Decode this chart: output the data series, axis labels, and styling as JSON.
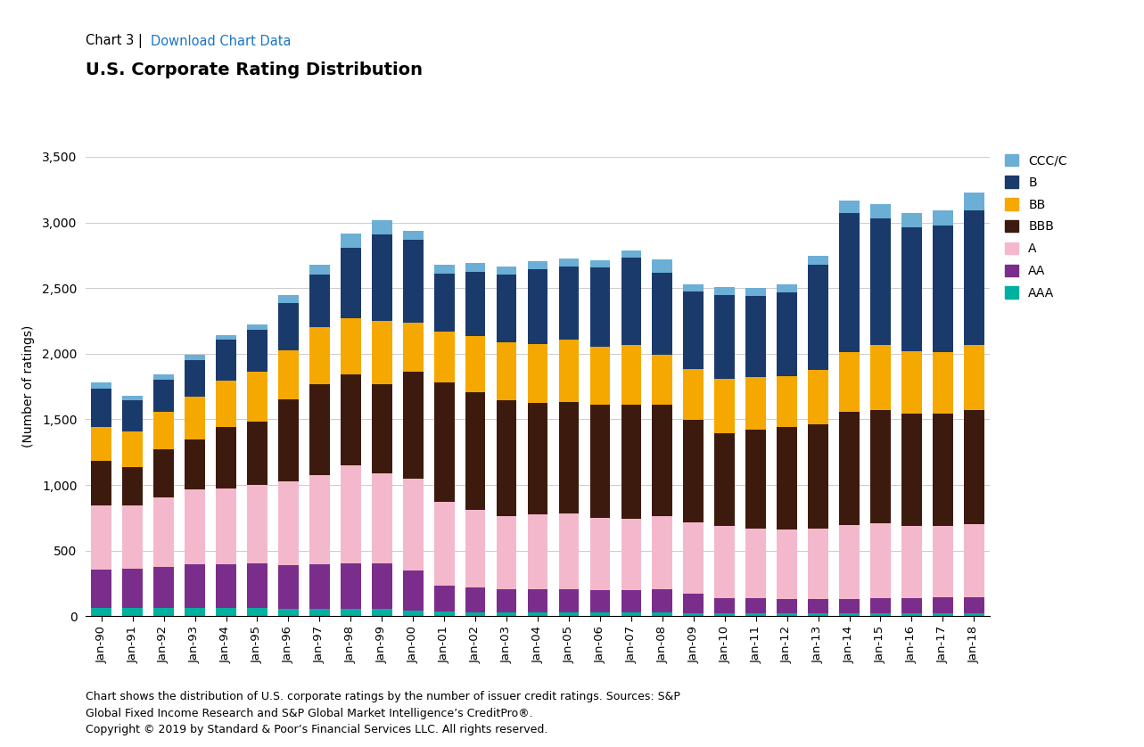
{
  "title_main": "U.S. Corporate Rating Distribution",
  "ylabel": "(Number of ratings)",
  "categories": [
    "Jan-90",
    "Jan-91",
    "Jan-92",
    "Jan-93",
    "Jan-94",
    "Jan-95",
    "Jan-96",
    "Jan-97",
    "Jan-98",
    "Jan-99",
    "Jan-00",
    "Jan-01",
    "Jan-02",
    "Jan-03",
    "Jan-04",
    "Jan-05",
    "Jan-06",
    "Jan-07",
    "Jan-08",
    "Jan-09",
    "Jan-10",
    "Jan-11",
    "Jan-12",
    "Jan-13",
    "Jan-14",
    "Jan-15",
    "Jan-16",
    "Jan-17",
    "Jan-18"
  ],
  "series": {
    "AAA": [
      65,
      65,
      65,
      65,
      65,
      65,
      60,
      60,
      60,
      60,
      40,
      35,
      30,
      30,
      30,
      30,
      30,
      30,
      30,
      25,
      20,
      20,
      20,
      20,
      20,
      20,
      20,
      20,
      20
    ],
    "AA": [
      290,
      300,
      310,
      330,
      330,
      335,
      330,
      335,
      340,
      340,
      310,
      200,
      190,
      175,
      175,
      175,
      170,
      170,
      175,
      150,
      120,
      115,
      110,
      110,
      110,
      120,
      120,
      125,
      125
    ],
    "A": [
      490,
      480,
      530,
      570,
      580,
      600,
      640,
      680,
      750,
      690,
      700,
      640,
      590,
      560,
      570,
      575,
      550,
      545,
      560,
      540,
      545,
      535,
      530,
      540,
      565,
      570,
      545,
      540,
      555
    ],
    "BBB": [
      340,
      290,
      370,
      380,
      470,
      480,
      620,
      690,
      690,
      680,
      810,
      910,
      900,
      880,
      850,
      850,
      860,
      870,
      850,
      780,
      710,
      750,
      780,
      790,
      860,
      860,
      860,
      860,
      870
    ],
    "BB": [
      260,
      270,
      280,
      330,
      350,
      380,
      375,
      440,
      430,
      480,
      375,
      385,
      425,
      440,
      450,
      475,
      440,
      450,
      380,
      390,
      415,
      400,
      390,
      420,
      455,
      500,
      475,
      470,
      495
    ],
    "B": [
      290,
      240,
      250,
      275,
      310,
      320,
      360,
      400,
      540,
      660,
      630,
      440,
      490,
      520,
      570,
      560,
      610,
      670,
      620,
      590,
      640,
      620,
      640,
      800,
      1060,
      960,
      940,
      960,
      1030
    ],
    "CCC/C": [
      45,
      35,
      35,
      40,
      40,
      45,
      65,
      75,
      105,
      110,
      70,
      70,
      65,
      60,
      60,
      60,
      55,
      55,
      105,
      55,
      60,
      60,
      60,
      65,
      100,
      110,
      115,
      115,
      130
    ]
  },
  "colors": {
    "AAA": "#00b0a0",
    "AA": "#7b2d8b",
    "A": "#f4b8cc",
    "BBB": "#3d1a0e",
    "BB": "#f5a800",
    "B": "#1a3a6b",
    "CCC/C": "#6baed6"
  },
  "ylim": [
    0,
    3500
  ],
  "yticks": [
    0,
    500,
    1000,
    1500,
    2000,
    2500,
    3000,
    3500
  ],
  "footer_text": "Chart shows the distribution of U.S. corporate ratings by the number of issuer credit ratings. Sources: S&P\nGlobal Fixed Income Research and S&P Global Market Intelligence’s CreditPro®.\nCopyright © 2019 by Standard & Poor’s Financial Services LLC. All rights reserved.",
  "background_color": "#ffffff",
  "chart3_text": "Chart 3 | ",
  "download_text": "Download Chart Data",
  "download_color": "#1a75c4"
}
